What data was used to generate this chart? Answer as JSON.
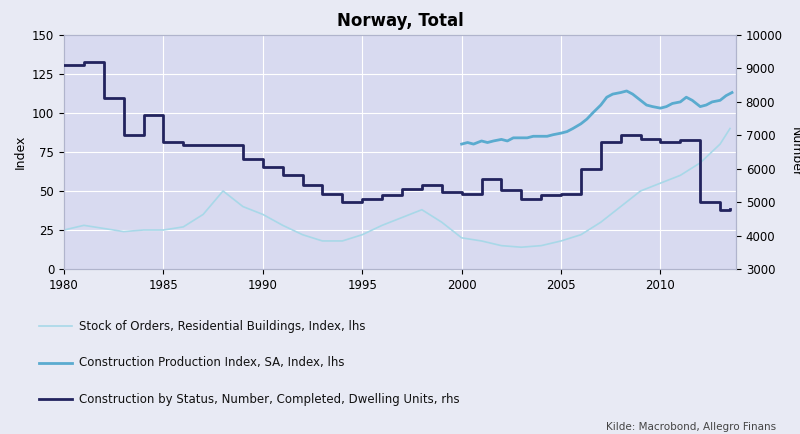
{
  "title": "Norway, Total",
  "ylabel_left": "Index",
  "ylabel_right": "Number",
  "source": "Kilde: Macrobond, Allegro Finans",
  "fig_facecolor": "#e8eaf4",
  "plot_facecolor": "#d8daf0",
  "legend_facecolor": "#eaecf5",
  "xlim": [
    1980,
    2013.8
  ],
  "ylim_left": [
    0,
    150
  ],
  "ylim_right": [
    3000,
    10000
  ],
  "yticks_left": [
    0,
    25,
    50,
    75,
    100,
    125,
    150
  ],
  "yticks_right": [
    3000,
    4000,
    5000,
    6000,
    7000,
    8000,
    9000,
    10000
  ],
  "xticks": [
    1980,
    1985,
    1990,
    1995,
    2000,
    2005,
    2010
  ],
  "stock_orders_color": "#a8d8e8",
  "construction_index_color": "#5aabcf",
  "construction_status_color": "#22235e",
  "stock_orders_x": [
    1980,
    1981,
    1982,
    1983,
    1984,
    1985,
    1986,
    1987,
    1988,
    1989,
    1990,
    1991,
    1992,
    1993,
    1994,
    1995,
    1996,
    1997,
    1998,
    1999,
    2000,
    2001,
    2002,
    2003,
    2004,
    2005,
    2006,
    2007,
    2008,
    2009,
    2010,
    2011,
    2012,
    2013,
    2013.5
  ],
  "stock_orders_y": [
    25,
    28,
    26,
    24,
    25,
    25,
    27,
    35,
    50,
    40,
    35,
    28,
    22,
    18,
    18,
    22,
    28,
    33,
    38,
    30,
    20,
    18,
    15,
    14,
    15,
    18,
    22,
    30,
    40,
    50,
    55,
    60,
    68,
    80,
    90
  ],
  "construction_index_x": [
    2000.0,
    2000.3,
    2000.6,
    2001.0,
    2001.3,
    2001.6,
    2002.0,
    2002.3,
    2002.6,
    2003.0,
    2003.3,
    2003.6,
    2004.0,
    2004.3,
    2004.6,
    2005.0,
    2005.3,
    2005.6,
    2006.0,
    2006.3,
    2006.6,
    2007.0,
    2007.3,
    2007.6,
    2008.0,
    2008.3,
    2008.6,
    2009.0,
    2009.3,
    2009.6,
    2010.0,
    2010.3,
    2010.6,
    2011.0,
    2011.3,
    2011.6,
    2012.0,
    2012.3,
    2012.6,
    2013.0,
    2013.3,
    2013.6
  ],
  "construction_index_y": [
    80,
    81,
    80,
    82,
    81,
    82,
    83,
    82,
    84,
    84,
    84,
    85,
    85,
    85,
    86,
    87,
    88,
    90,
    93,
    96,
    100,
    105,
    110,
    112,
    113,
    114,
    112,
    108,
    105,
    104,
    103,
    104,
    106,
    107,
    110,
    108,
    104,
    105,
    107,
    108,
    111,
    113
  ],
  "construction_status_x": [
    1980,
    1981,
    1982,
    1983,
    1984,
    1985,
    1986,
    1987,
    1988,
    1989,
    1990,
    1991,
    1992,
    1993,
    1994,
    1995,
    1996,
    1997,
    1998,
    1999,
    2000,
    2001,
    2002,
    2003,
    2004,
    2005,
    2006,
    2007,
    2008,
    2009,
    2010,
    2011,
    2012,
    2013,
    2013.5
  ],
  "construction_status_y": [
    9100,
    9200,
    8100,
    7000,
    7600,
    6800,
    6700,
    6700,
    6700,
    6300,
    6050,
    5800,
    5500,
    5250,
    5000,
    5100,
    5200,
    5400,
    5500,
    5300,
    5250,
    5700,
    5350,
    5100,
    5200,
    5250,
    6000,
    6800,
    7000,
    6900,
    6800,
    6850,
    5000,
    4750,
    4800
  ],
  "legend_entries": [
    {
      "label": "Stock of Orders, Residential Buildings, Index, lhs",
      "color": "#a8d8e8",
      "lw": 1.2
    },
    {
      "label": "Construction Production Index, SA, Index, lhs",
      "color": "#5aabcf",
      "lw": 2.0
    },
    {
      "label": "Construction by Status, Number, Completed, Dwelling Units, rhs",
      "color": "#22235e",
      "lw": 2.0
    }
  ]
}
